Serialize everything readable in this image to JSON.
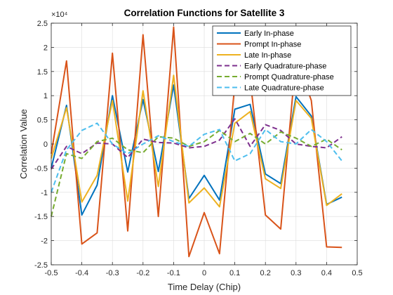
{
  "chart_data": {
    "type": "line",
    "title": "Correlation Functions for Satellite 3",
    "xlabel": "Time Delay (Chip)",
    "ylabel": "Correlation Value",
    "y_exponent_label": "×10⁴",
    "y_scale_factor": 10000,
    "xlim": [
      -0.5,
      0.5
    ],
    "ylim": [
      -2.5,
      2.5
    ],
    "x_ticks": [
      -0.5,
      -0.4,
      -0.3,
      -0.2,
      -0.1,
      0,
      0.1,
      0.2,
      0.3,
      0.4,
      0.5
    ],
    "x_tick_labels": [
      "-0.5",
      "-0.4",
      "-0.3",
      "-0.2",
      "-0.1",
      "0",
      "0.1",
      "0.2",
      "0.3",
      "0.4",
      "0.5"
    ],
    "y_ticks": [
      -2.5,
      -2,
      -1.5,
      -1,
      -0.5,
      0,
      0.5,
      1,
      1.5,
      2,
      2.5
    ],
    "y_tick_labels": [
      "-2.5",
      "-2",
      "-1.5",
      "-1",
      "-0.5",
      "0",
      "0.5",
      "1",
      "1.5",
      "2",
      "2.5"
    ],
    "grid": true,
    "legend_position": "top-right",
    "x": [
      -0.5,
      -0.45,
      -0.4,
      -0.35,
      -0.3,
      -0.25,
      -0.2,
      -0.15,
      -0.1,
      -0.05,
      0,
      0.05,
      0.1,
      0.15,
      0.2,
      0.25,
      0.3,
      0.35,
      0.4,
      0.45
    ],
    "series": [
      {
        "name": "Early In-phase",
        "color": "#0072BD",
        "dash": "solid",
        "values": [
          -0.5,
          0.8,
          -1.47,
          -0.85,
          1.0,
          -0.58,
          0.92,
          -0.57,
          1.22,
          -1.13,
          -0.65,
          -1.16,
          0.72,
          0.82,
          -0.62,
          -0.82,
          0.98,
          0.58,
          -1.25,
          -1.1
        ]
      },
      {
        "name": "Prompt In-phase",
        "color": "#D95319",
        "dash": "solid",
        "values": [
          -0.2,
          1.72,
          -2.07,
          -1.84,
          1.88,
          -1.8,
          2.26,
          -1.5,
          2.42,
          -2.33,
          -1.42,
          -2.27,
          1.25,
          1.35,
          -1.47,
          -1.76,
          1.8,
          0.9,
          -2.13,
          -2.14
        ]
      },
      {
        "name": "Late In-phase",
        "color": "#EDB120",
        "dash": "solid",
        "values": [
          -0.3,
          0.75,
          -1.2,
          -0.65,
          0.9,
          -1.18,
          1.1,
          -0.88,
          1.42,
          -1.22,
          -0.91,
          -1.3,
          0.43,
          0.67,
          -0.72,
          -0.92,
          0.9,
          0.53,
          -1.27,
          -1.03
        ]
      },
      {
        "name": "Early Quadrature-phase",
        "color": "#7E2F8E",
        "dash": "dash",
        "values": [
          -0.52,
          -0.05,
          -0.2,
          0.02,
          0.0,
          -0.28,
          0.1,
          0.03,
          0.02,
          -0.08,
          -0.05,
          0.08,
          0.52,
          -0.05,
          0.4,
          0.28,
          0.0,
          -0.05,
          -0.08,
          0.15
        ]
      },
      {
        "name": "Prompt Quadrature-phase",
        "color": "#77AC30",
        "dash": "dash",
        "values": [
          -1.5,
          -0.2,
          -0.3,
          0.05,
          0.12,
          -0.12,
          -0.18,
          0.15,
          0.12,
          -0.05,
          0.05,
          0.28,
          0.05,
          0.22,
          0.0,
          0.25,
          0.12,
          -0.05,
          0.1,
          -0.12
        ]
      },
      {
        "name": "Late Quadrature-phase",
        "color": "#4DBEEE",
        "dash": "dash",
        "values": [
          -1.0,
          -0.12,
          0.28,
          0.43,
          0.0,
          -0.2,
          0.0,
          0.17,
          0.05,
          -0.05,
          0.2,
          0.3,
          -0.35,
          -0.2,
          0.3,
          0.05,
          0.0,
          0.3,
          0.05,
          -0.35
        ]
      }
    ]
  }
}
